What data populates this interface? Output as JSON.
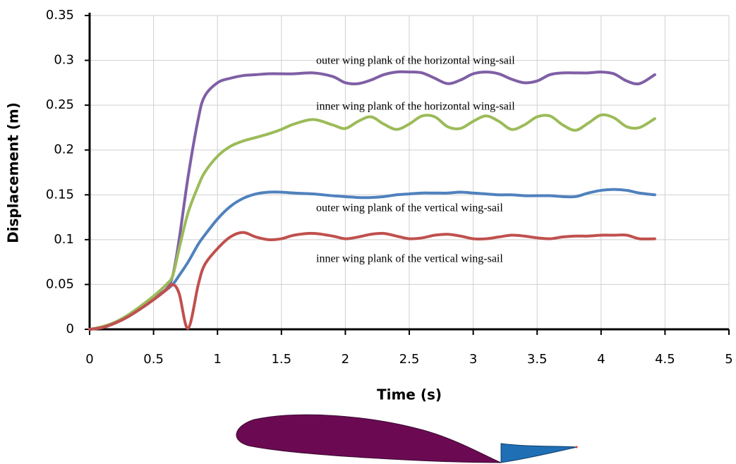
{
  "chart_data": {
    "type": "line",
    "x_label": "Time (s)",
    "y_label": "Displacement (m)",
    "x": [
      0,
      0.1,
      0.2,
      0.3,
      0.4,
      0.5,
      0.6,
      0.65,
      0.7,
      0.77,
      0.85,
      0.9,
      1.0,
      1.1,
      1.2,
      1.3,
      1.4,
      1.5,
      1.6,
      1.75,
      1.9,
      2.0,
      2.1,
      2.2,
      2.3,
      2.4,
      2.5,
      2.6,
      2.7,
      2.8,
      2.9,
      3.0,
      3.1,
      3.2,
      3.3,
      3.4,
      3.5,
      3.6,
      3.7,
      3.8,
      3.9,
      4.0,
      4.1,
      4.2,
      4.3,
      4.42
    ],
    "series": [
      {
        "name": "outer wing plank of the horizontal wing-sail",
        "color": "#7f5fa5",
        "values": [
          0,
          0.002,
          0.008,
          0.015,
          0.025,
          0.035,
          0.045,
          0.06,
          0.1,
          0.17,
          0.235,
          0.26,
          0.275,
          0.28,
          0.283,
          0.284,
          0.285,
          0.285,
          0.285,
          0.286,
          0.282,
          0.275,
          0.274,
          0.278,
          0.284,
          0.287,
          0.287,
          0.286,
          0.28,
          0.274,
          0.278,
          0.285,
          0.287,
          0.285,
          0.279,
          0.275,
          0.277,
          0.284,
          0.286,
          0.286,
          0.286,
          0.287,
          0.285,
          0.277,
          0.274,
          0.284
        ]
      },
      {
        "name": "inner wing plank of the horizontal wing-sail",
        "color": "#9bbb59",
        "values": [
          0,
          0.003,
          0.008,
          0.016,
          0.026,
          0.037,
          0.05,
          0.06,
          0.09,
          0.13,
          0.16,
          0.175,
          0.193,
          0.204,
          0.21,
          0.214,
          0.218,
          0.223,
          0.229,
          0.234,
          0.228,
          0.224,
          0.232,
          0.237,
          0.229,
          0.223,
          0.229,
          0.238,
          0.237,
          0.226,
          0.224,
          0.232,
          0.238,
          0.232,
          0.223,
          0.228,
          0.237,
          0.238,
          0.228,
          0.222,
          0.23,
          0.239,
          0.236,
          0.226,
          0.225,
          0.235
        ]
      },
      {
        "name": "outer wing plank of the vertical wing-sail",
        "color": "#4f81bd",
        "values": [
          0,
          0.002,
          0.007,
          0.014,
          0.023,
          0.033,
          0.044,
          0.05,
          0.06,
          0.075,
          0.095,
          0.105,
          0.123,
          0.137,
          0.146,
          0.151,
          0.153,
          0.153,
          0.152,
          0.151,
          0.149,
          0.148,
          0.147,
          0.147,
          0.148,
          0.15,
          0.151,
          0.152,
          0.152,
          0.152,
          0.153,
          0.152,
          0.151,
          0.15,
          0.15,
          0.149,
          0.149,
          0.149,
          0.148,
          0.148,
          0.152,
          0.155,
          0.156,
          0.155,
          0.152,
          0.15
        ]
      },
      {
        "name": "inner wing plank of the vertical wing-sail",
        "color": "#c0504d",
        "values": [
          0,
          0.002,
          0.007,
          0.014,
          0.023,
          0.033,
          0.044,
          0.05,
          0.04,
          0.001,
          0.05,
          0.072,
          0.09,
          0.103,
          0.108,
          0.103,
          0.1,
          0.101,
          0.105,
          0.107,
          0.104,
          0.101,
          0.103,
          0.106,
          0.107,
          0.104,
          0.101,
          0.102,
          0.105,
          0.106,
          0.104,
          0.101,
          0.101,
          0.103,
          0.105,
          0.104,
          0.102,
          0.101,
          0.103,
          0.104,
          0.104,
          0.105,
          0.105,
          0.105,
          0.101,
          0.101
        ]
      }
    ],
    "xlim": [
      0,
      5
    ],
    "xticks": [
      0,
      0.5,
      1,
      1.5,
      2,
      2.5,
      3,
      3.5,
      4,
      4.5,
      5
    ],
    "ylim": [
      0,
      0.35
    ],
    "yticks": [
      0,
      0.05,
      0.1,
      0.15,
      0.2,
      0.25,
      0.3,
      0.35
    ],
    "grid": true
  }
}
